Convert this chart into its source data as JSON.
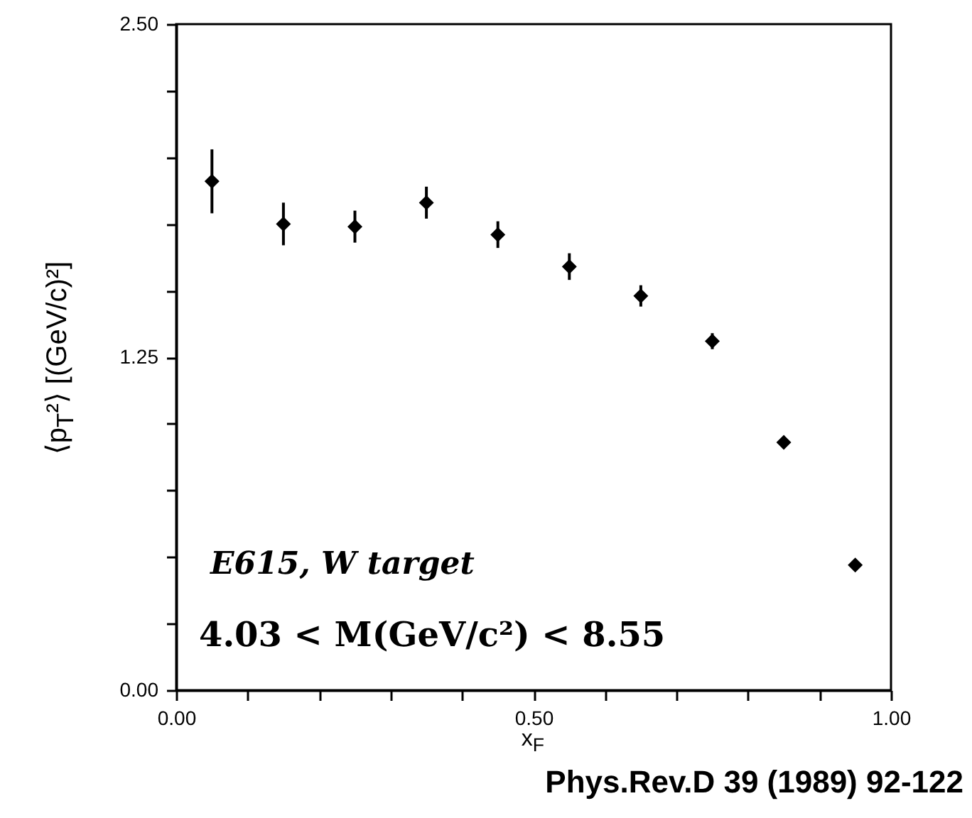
{
  "chart_data": {
    "type": "scatter",
    "xlabel": "x$_{F}$",
    "ylabel": "⟨p$_{T}$²⟩ [(GeV/c)²]",
    "x": [
      0.05,
      0.15,
      0.25,
      0.35,
      0.45,
      0.55,
      0.65,
      0.75,
      0.85,
      0.95
    ],
    "series": [
      {
        "color": "#000000",
        "values": [
          1.91,
          1.75,
          1.74,
          1.83,
          1.71,
          1.59,
          1.48,
          1.31,
          0.93,
          0.47
        ],
        "errors": [
          0.12,
          0.08,
          0.06,
          0.06,
          0.05,
          0.05,
          0.04,
          0.03,
          0.02,
          0.02
        ]
      }
    ],
    "marker": "diamond",
    "xlim": [
      0,
      1
    ],
    "xticks": [
      {
        "value": 0,
        "label": "0.00"
      },
      {
        "value": 0.1,
        "label": null
      },
      {
        "value": 0.2,
        "label": null
      },
      {
        "value": 0.3,
        "label": null
      },
      {
        "value": 0.4,
        "label": null
      },
      {
        "value": 0.5,
        "label": "0.50"
      },
      {
        "value": 0.6,
        "label": null
      },
      {
        "value": 0.7,
        "label": null
      },
      {
        "value": 0.8,
        "label": null
      },
      {
        "value": 0.9,
        "label": null
      },
      {
        "value": 1,
        "label": "1.00"
      }
    ],
    "ylim": [
      0,
      2.5
    ],
    "yticks": [
      {
        "value": 0,
        "label": "0.00"
      },
      {
        "value": 0.25,
        "label": null
      },
      {
        "value": 0.5,
        "label": null
      },
      {
        "value": 0.75,
        "label": null
      },
      {
        "value": 1,
        "label": null
      },
      1.25,
      {
        "value": 1.5,
        "label": null
      },
      {
        "value": 1.75,
        "label": null
      },
      {
        "value": 2,
        "label": null
      },
      {
        "value": 2.25,
        "label": null
      },
      {
        "value": 2.5,
        "label": "2.50"
      }
    ],
    "grid": false,
    "annotations": [
      "E615, W target",
      "4.03 < M(GeV/c²) < 8.55",
      "Phys.Rev.D 39 (1989) 92-122"
    ]
  }
}
